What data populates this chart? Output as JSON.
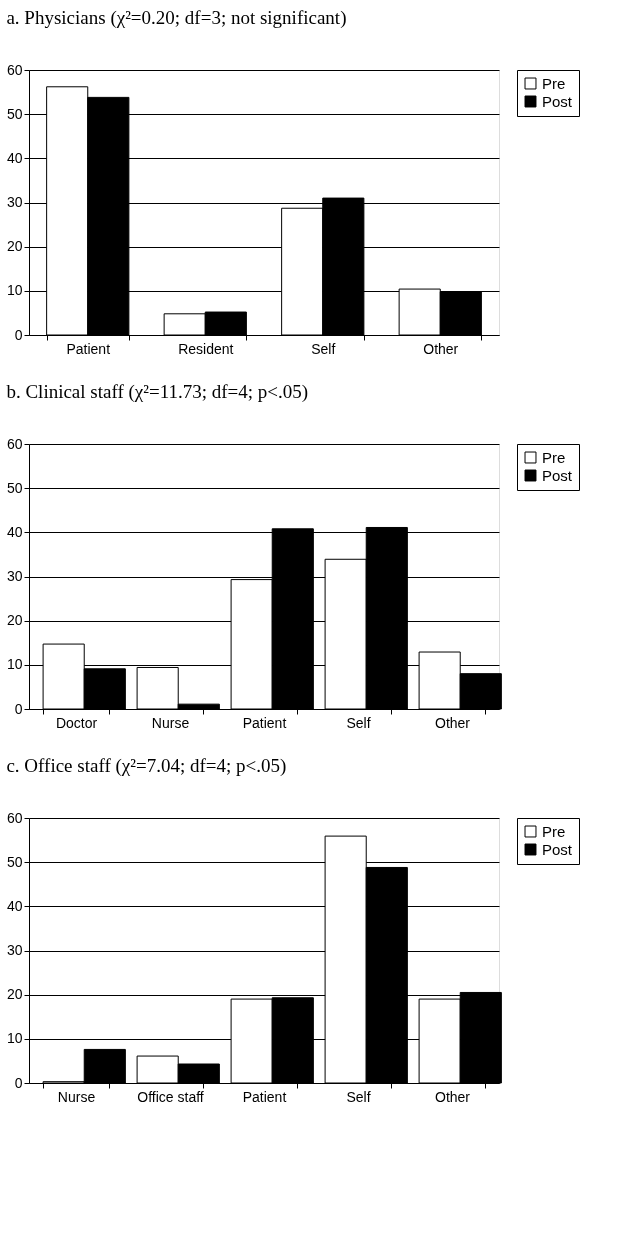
{
  "chart_data": [
    {
      "type": "bar",
      "title": "a. Physicians (χ²=0.20; df=3; not significant)",
      "categories": [
        "Patient",
        "Resident",
        "Self",
        "Other"
      ],
      "series": [
        {
          "name": "Pre",
          "color": "#ffffff",
          "values": [
            56.2,
            4.8,
            28.7,
            10.4
          ]
        },
        {
          "name": "Post",
          "color": "#000000",
          "values": [
            53.8,
            5.2,
            31.0,
            9.8
          ]
        }
      ],
      "ylim": [
        0,
        60
      ],
      "yticks": [
        0,
        10,
        20,
        30,
        40,
        50,
        60
      ],
      "grid": "y",
      "legend": "right"
    },
    {
      "type": "bar",
      "title": "b. Clinical staff (χ²=11.73; df=4; p<.05)",
      "categories": [
        "Doctor",
        "Nurse",
        "Patient",
        "Self",
        "Other"
      ],
      "series": [
        {
          "name": "Pre",
          "color": "#ffffff",
          "values": [
            14.7,
            9.4,
            29.3,
            33.9,
            12.9
          ]
        },
        {
          "name": "Post",
          "color": "#000000",
          "values": [
            9.1,
            1.1,
            40.8,
            41.1,
            8.0
          ]
        }
      ],
      "ylim": [
        0,
        60
      ],
      "yticks": [
        0,
        10,
        20,
        30,
        40,
        50,
        60
      ],
      "grid": "y",
      "legend": "right"
    },
    {
      "type": "bar",
      "title": "c. Office staff (χ²=7.04; df=4; p<.05)",
      "categories": [
        "Nurse",
        "Office staff",
        "Patient",
        "Self",
        "Other"
      ],
      "series": [
        {
          "name": "Pre",
          "color": "#ffffff",
          "values": [
            0.3,
            6.1,
            19.0,
            55.9,
            19.0
          ]
        },
        {
          "name": "Post",
          "color": "#000000",
          "values": [
            7.6,
            4.3,
            19.3,
            48.8,
            20.5
          ]
        }
      ],
      "ylim": [
        0,
        60
      ],
      "yticks": [
        0,
        10,
        20,
        30,
        40,
        50,
        60
      ],
      "grid": "y",
      "legend": "right"
    }
  ]
}
